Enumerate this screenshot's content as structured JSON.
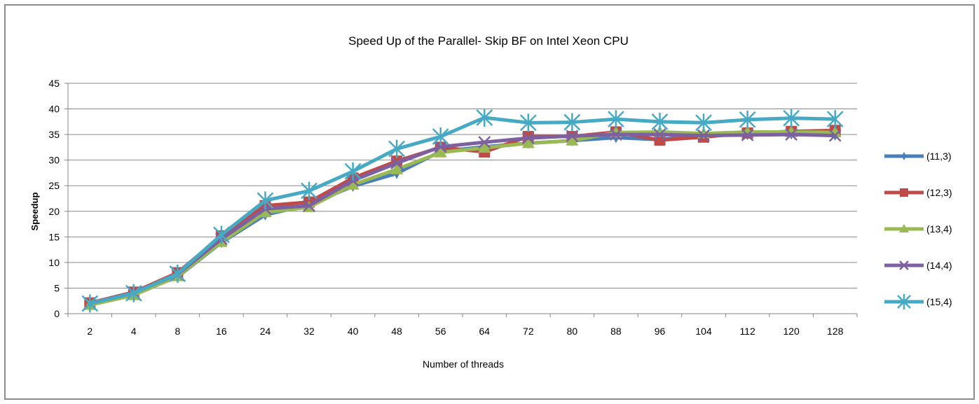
{
  "chart_data": {
    "type": "line",
    "title": "Speed Up of the Parallel- Skip BF on Intel Xeon CPU",
    "xlabel": "Number of threads",
    "ylabel": "Speedup",
    "categories": [
      "2",
      "4",
      "8",
      "16",
      "24",
      "32",
      "40",
      "48",
      "56",
      "64",
      "72",
      "80",
      "88",
      "96",
      "104",
      "112",
      "120",
      "128"
    ],
    "ylim": [
      0,
      45
    ],
    "yticks": [
      0,
      5,
      10,
      15,
      20,
      25,
      30,
      35,
      40,
      45
    ],
    "grid": true,
    "legend_position": "right",
    "series": [
      {
        "name": "(11,3)",
        "color": "#4a7ebb",
        "marker": "diamond",
        "values": [
          1.9,
          3.8,
          7.2,
          13.9,
          19.3,
          21.3,
          24.9,
          27.4,
          31.7,
          32.6,
          33.3,
          33.8,
          34.4,
          34.0,
          34.9,
          35.0,
          35.1,
          34.9
        ]
      },
      {
        "name": "(12,3)",
        "color": "#be4b48",
        "marker": "square",
        "values": [
          2.1,
          4.2,
          8.0,
          15.2,
          21.1,
          21.8,
          26.5,
          29.8,
          32.5,
          31.6,
          34.6,
          34.6,
          35.5,
          33.9,
          34.5,
          35.3,
          35.6,
          35.8
        ]
      },
      {
        "name": "(13,4)",
        "color": "#98b954",
        "marker": "triangle",
        "values": [
          1.7,
          3.6,
          7.3,
          14.0,
          19.8,
          20.8,
          25.2,
          28.2,
          31.5,
          32.4,
          33.3,
          33.8,
          35.4,
          35.5,
          35.2,
          35.5,
          35.5,
          35.4
        ]
      },
      {
        "name": "(14,4)",
        "color": "#7d60a0",
        "marker": "x",
        "values": [
          2.0,
          4.1,
          7.7,
          14.6,
          20.5,
          21.1,
          26.0,
          29.4,
          32.6,
          33.5,
          34.3,
          34.7,
          35.0,
          35.0,
          34.8,
          34.9,
          35.0,
          34.8
        ]
      },
      {
        "name": "(15,4)",
        "color": "#46aac5",
        "marker": "star",
        "values": [
          2.0,
          4.0,
          7.8,
          15.4,
          22.1,
          24.0,
          27.8,
          32.2,
          34.6,
          38.3,
          37.3,
          37.4,
          38.0,
          37.5,
          37.3,
          37.9,
          38.2,
          38.0
        ]
      }
    ]
  }
}
